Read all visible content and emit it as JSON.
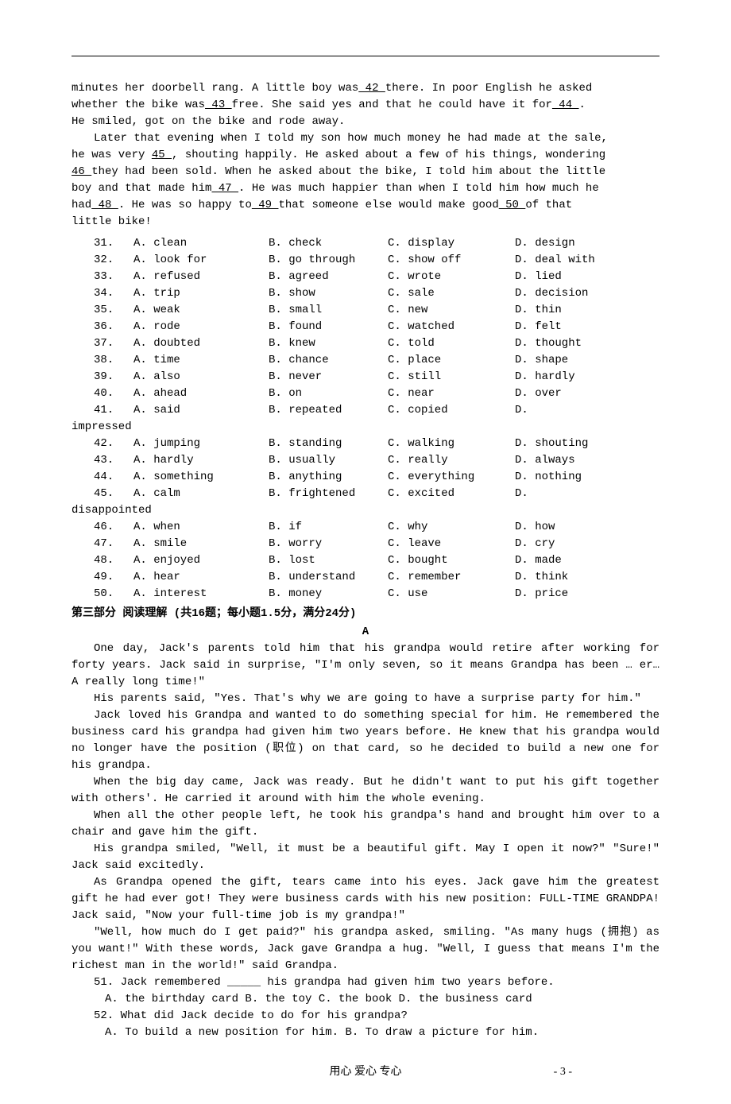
{
  "passage1": {
    "line1a": "minutes her doorbell rang. A little boy was",
    "blank42": "  42 ",
    "line1b": "there. In poor English he asked",
    "line2a": "whether the bike was",
    "blank43": "  43 ",
    "line2b": " free. She said yes and that he could have it for",
    "blank44": "  44  ",
    "line2c": ".",
    "line3": "He smiled, got on the bike and rode away.",
    "line4a": "Later that evening when I told my son how much money he had made at the sale,",
    "line5a": "he was very ",
    "blank45": "  45  ",
    "line5b": ", shouting happily. He asked about a few of his things, wondering",
    "blank46": " 46 ",
    "line6a": " they had been sold. When he asked about the bike, I told him about the little",
    "line7a": "boy and that made him",
    "blank47": "  47  ",
    "line7b": ". He was much happier than when I told him how much he",
    "line8a": "had",
    "blank48": "  48  ",
    "line8b": ". He was so happy to",
    "blank49": "  49  ",
    "line8c": "that someone else would make good",
    "blank50": "  50  ",
    "line8d": "of that",
    "line9": "little bike!"
  },
  "options": [
    {
      "num": "31.",
      "a": "A. clean",
      "b": "B. check",
      "c": "C. display",
      "d": "D. design"
    },
    {
      "num": "32.",
      "a": "A. look for",
      "b": "B. go through",
      "c": "C. show off",
      "d": "D. deal with"
    },
    {
      "num": "33.",
      "a": "A. refused",
      "b": "B. agreed",
      "c": "C. wrote",
      "d": "D. lied"
    },
    {
      "num": "34.",
      "a": "A. trip",
      "b": "B. show",
      "c": "C. sale",
      "d": "D. decision"
    },
    {
      "num": "35.",
      "a": "A. weak",
      "b": "B. small",
      "c": "C. new",
      "d": "D. thin"
    },
    {
      "num": "36.",
      "a": "A. rode",
      "b": "B. found",
      "c": "C. watched",
      "d": "D. felt"
    },
    {
      "num": "37.",
      "a": "A. doubted",
      "b": "B. knew",
      "c": "C. told",
      "d": "D. thought"
    },
    {
      "num": "38.",
      "a": "A. time",
      "b": "B. chance",
      "c": "C. place",
      "d": "D. shape"
    },
    {
      "num": "39.",
      "a": "A. also",
      "b": "B. never",
      "c": "C. still",
      "d": "D. hardly"
    },
    {
      "num": "40.",
      "a": "A. ahead",
      "b": "B. on",
      "c": "C. near",
      "d": "D. over"
    },
    {
      "num": "41.",
      "a": "A. said",
      "b": "B. repeated",
      "c": "C. copied",
      "d": "D."
    },
    {
      "num": "42.",
      "a": "A. jumping",
      "b": "B. standing",
      "c": "C. walking",
      "d": "D. shouting"
    },
    {
      "num": "43.",
      "a": "A. hardly",
      "b": "B. usually",
      "c": "C. really",
      "d": "D. always"
    },
    {
      "num": "44.",
      "a": "A. something",
      "b": "B. anything",
      "c": "C. everything",
      "d": "D. nothing"
    },
    {
      "num": "45.",
      "a": "A. calm",
      "b": "B. frightened",
      "c": "C. excited",
      "d": "D."
    },
    {
      "num": "46.",
      "a": "A. when",
      "b": "B. if",
      "c": "C. why",
      "d": "D. how"
    },
    {
      "num": "47.",
      "a": "A. smile",
      "b": "B. worry",
      "c": "C. leave",
      "d": "D. cry"
    },
    {
      "num": "48.",
      "a": "A. enjoyed",
      "b": "B. lost",
      "c": "C. bought",
      "d": "D. made"
    },
    {
      "num": "49.",
      "a": "A. hear",
      "b": "B. understand",
      "c": "C. remember",
      "d": "D. think"
    },
    {
      "num": "50.",
      "a": "A. interest",
      "b": "B. money",
      "c": "C. use",
      "d": "D. price"
    }
  ],
  "overflow41": "impressed",
  "overflow45": "disappointed",
  "section_title": "第三部分 阅读理解 (共16题；每小题1.5分，满分24分)",
  "passage_label": "A",
  "passage2": [
    "One day, Jack's parents told him that his grandpa would retire after working for forty years. Jack said in surprise, \"I'm only seven, so it means Grandpa has been … er… A really long time!\"",
    "His parents said, \"Yes. That's why we are going to have a surprise party for him.\"",
    "Jack loved his Grandpa and wanted to do something special for him. He remembered the business card his grandpa had given him two years before. He knew that his grandpa would no longer have the position (职位) on that card, so he decided to build a new one for his grandpa.",
    "When the big day came, Jack was ready. But he didn't want to put his gift together with others'. He carried it around with him the whole evening.",
    "When all the other people left, he took his grandpa's hand and brought him over to a chair and gave him the gift.",
    "His grandpa smiled, \"Well, it must be a beautiful gift. May I open it now?\" \"Sure!\" Jack said excitedly.",
    "As Grandpa opened the gift, tears came into his eyes. Jack gave him the greatest gift he had ever got! They were business cards with his new position: FULL-TIME GRANDPA! Jack said, \"Now your full-time job is my grandpa!\"",
    "\"Well, how much do I get paid?\" his grandpa asked, smiling. \"As many hugs (拥抱) as you want!\" With these words, Jack gave Grandpa a hug. \"Well, I guess that means I'm the richest man in the world!\" said Grandpa."
  ],
  "questions": [
    {
      "num": "51.",
      "text": "Jack remembered _____ his grandpa had given him two years before.",
      "opts": "A. the birthday card   B. the toy   C. the book   D. the business card"
    },
    {
      "num": "52.",
      "text": "What did Jack decide to do for his grandpa?",
      "opts": "A. To build a new position for him.      B. To draw a picture for him."
    }
  ],
  "footer": {
    "text": "用心 爱心 专心",
    "page": "- 3 -"
  }
}
